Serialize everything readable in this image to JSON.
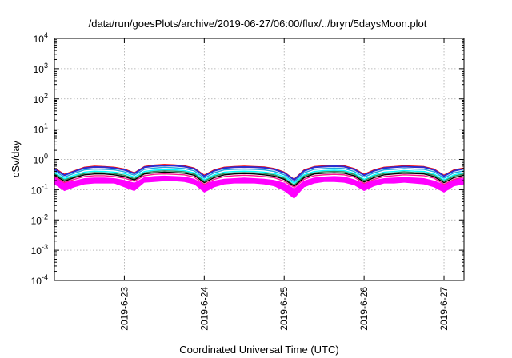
{
  "chart_data": {
    "type": "line",
    "title": "/data/run/goesPlots/archive/2019-06-27/06:00/flux/../bryn/5daysMoon.plot",
    "xlabel": "Coordinated Universal Time (UTC)",
    "ylabel": "cSv/day",
    "y_scale": "log",
    "ylim": [
      0.0001,
      10000
    ],
    "xlim": [
      "2019-06-22T03:00",
      "2019-06-27T06:00"
    ],
    "x_ticks": [
      "2019-6-23",
      "2019-6-24",
      "2019-6-25",
      "2019-6-26",
      "2019-6-27"
    ],
    "y_ticks": [
      {
        "base": "10",
        "exp": "-4"
      },
      {
        "base": "10",
        "exp": "-3"
      },
      {
        "base": "10",
        "exp": "-2"
      },
      {
        "base": "10",
        "exp": "-1"
      },
      {
        "base": "10",
        "exp": "0"
      },
      {
        "base": "10",
        "exp": "1"
      },
      {
        "base": "10",
        "exp": "2"
      },
      {
        "base": "10",
        "exp": "3"
      },
      {
        "base": "10",
        "exp": "4"
      }
    ],
    "grid": true,
    "legend": "none",
    "x": [
      "2019-06-22T03:00",
      "2019-06-22T06:00",
      "2019-06-22T09:00",
      "2019-06-22T12:00",
      "2019-06-22T15:00",
      "2019-06-22T18:00",
      "2019-06-22T21:00",
      "2019-06-23T00:00",
      "2019-06-23T03:00",
      "2019-06-23T06:00",
      "2019-06-23T09:00",
      "2019-06-23T12:00",
      "2019-06-23T15:00",
      "2019-06-23T18:00",
      "2019-06-23T21:00",
      "2019-06-24T00:00",
      "2019-06-24T03:00",
      "2019-06-24T06:00",
      "2019-06-24T09:00",
      "2019-06-24T12:00",
      "2019-06-24T15:00",
      "2019-06-24T18:00",
      "2019-06-24T21:00",
      "2019-06-25T00:00",
      "2019-06-25T03:00",
      "2019-06-25T06:00",
      "2019-06-25T09:00",
      "2019-06-25T12:00",
      "2019-06-25T15:00",
      "2019-06-25T18:00",
      "2019-06-25T21:00",
      "2019-06-26T00:00",
      "2019-06-26T03:00",
      "2019-06-26T06:00",
      "2019-06-26T09:00",
      "2019-06-26T12:00",
      "2019-06-26T15:00",
      "2019-06-26T18:00",
      "2019-06-26T21:00",
      "2019-06-27T00:00",
      "2019-06-27T03:00",
      "2019-06-27T06:00"
    ],
    "band": {
      "color": "#ff00ff",
      "lower": [
        0.15,
        0.09,
        0.12,
        0.15,
        0.16,
        0.16,
        0.16,
        0.12,
        0.09,
        0.17,
        0.18,
        0.19,
        0.19,
        0.18,
        0.15,
        0.08,
        0.12,
        0.15,
        0.16,
        0.16,
        0.16,
        0.15,
        0.13,
        0.09,
        0.05,
        0.12,
        0.16,
        0.18,
        0.18,
        0.17,
        0.14,
        0.09,
        0.13,
        0.16,
        0.16,
        0.17,
        0.16,
        0.15,
        0.12,
        0.08,
        0.13,
        0.15
      ],
      "upper": [
        0.26,
        0.17,
        0.2,
        0.24,
        0.25,
        0.25,
        0.24,
        0.21,
        0.17,
        0.26,
        0.28,
        0.29,
        0.28,
        0.27,
        0.23,
        0.15,
        0.2,
        0.23,
        0.24,
        0.25,
        0.24,
        0.23,
        0.21,
        0.17,
        0.11,
        0.2,
        0.25,
        0.27,
        0.28,
        0.27,
        0.22,
        0.16,
        0.21,
        0.24,
        0.25,
        0.26,
        0.25,
        0.24,
        0.2,
        0.15,
        0.22,
        0.24
      ]
    },
    "series": [
      {
        "color": "#ff0000",
        "values": [
          0.52,
          0.32,
          0.42,
          0.55,
          0.6,
          0.58,
          0.55,
          0.48,
          0.36,
          0.58,
          0.65,
          0.68,
          0.66,
          0.62,
          0.52,
          0.3,
          0.45,
          0.55,
          0.58,
          0.6,
          0.58,
          0.56,
          0.5,
          0.38,
          0.22,
          0.45,
          0.58,
          0.62,
          0.64,
          0.62,
          0.5,
          0.32,
          0.45,
          0.55,
          0.58,
          0.62,
          0.6,
          0.58,
          0.48,
          0.3,
          0.45,
          0.52
        ]
      },
      {
        "color": "#2d2dcf",
        "values": [
          0.48,
          0.3,
          0.4,
          0.52,
          0.56,
          0.55,
          0.52,
          0.45,
          0.34,
          0.55,
          0.6,
          0.63,
          0.62,
          0.58,
          0.49,
          0.28,
          0.42,
          0.52,
          0.55,
          0.56,
          0.55,
          0.53,
          0.47,
          0.36,
          0.21,
          0.42,
          0.55,
          0.58,
          0.6,
          0.58,
          0.47,
          0.3,
          0.42,
          0.52,
          0.55,
          0.58,
          0.56,
          0.55,
          0.45,
          0.28,
          0.42,
          0.49
        ]
      },
      {
        "color": "#1fa7e0",
        "values": [
          0.42,
          0.26,
          0.35,
          0.45,
          0.48,
          0.47,
          0.45,
          0.39,
          0.3,
          0.47,
          0.52,
          0.55,
          0.53,
          0.5,
          0.42,
          0.24,
          0.36,
          0.45,
          0.47,
          0.48,
          0.47,
          0.45,
          0.4,
          0.31,
          0.18,
          0.36,
          0.47,
          0.5,
          0.52,
          0.5,
          0.4,
          0.26,
          0.36,
          0.45,
          0.47,
          0.5,
          0.48,
          0.47,
          0.39,
          0.24,
          0.36,
          0.42
        ]
      },
      {
        "color": "#00ffff",
        "values": [
          0.36,
          0.23,
          0.3,
          0.38,
          0.41,
          0.4,
          0.38,
          0.34,
          0.26,
          0.4,
          0.44,
          0.46,
          0.45,
          0.43,
          0.36,
          0.21,
          0.31,
          0.38,
          0.4,
          0.41,
          0.4,
          0.38,
          0.34,
          0.27,
          0.16,
          0.31,
          0.4,
          0.43,
          0.44,
          0.43,
          0.35,
          0.22,
          0.31,
          0.38,
          0.4,
          0.43,
          0.41,
          0.4,
          0.33,
          0.21,
          0.31,
          0.36
        ]
      },
      {
        "color": "#2e8b57",
        "values": [
          0.33,
          0.21,
          0.27,
          0.34,
          0.37,
          0.36,
          0.34,
          0.3,
          0.23,
          0.36,
          0.4,
          0.42,
          0.41,
          0.39,
          0.33,
          0.19,
          0.28,
          0.34,
          0.36,
          0.37,
          0.36,
          0.34,
          0.31,
          0.24,
          0.14,
          0.28,
          0.36,
          0.39,
          0.4,
          0.39,
          0.32,
          0.2,
          0.28,
          0.34,
          0.36,
          0.39,
          0.37,
          0.36,
          0.3,
          0.19,
          0.28,
          0.33
        ]
      },
      {
        "color": "#000000",
        "values": [
          0.3,
          0.19,
          0.25,
          0.31,
          0.33,
          0.33,
          0.31,
          0.27,
          0.21,
          0.33,
          0.36,
          0.38,
          0.37,
          0.35,
          0.3,
          0.17,
          0.25,
          0.31,
          0.33,
          0.34,
          0.33,
          0.31,
          0.28,
          0.22,
          0.13,
          0.25,
          0.33,
          0.35,
          0.36,
          0.35,
          0.29,
          0.18,
          0.25,
          0.31,
          0.33,
          0.35,
          0.34,
          0.33,
          0.27,
          0.17,
          0.25,
          0.3
        ]
      },
      {
        "color": "#ff1493",
        "values": [
          0.27,
          0.17,
          0.22,
          0.27,
          0.29,
          0.29,
          0.27,
          0.24,
          0.19,
          0.29,
          0.32,
          0.33,
          0.32,
          0.31,
          0.26,
          0.15,
          0.22,
          0.27,
          0.29,
          0.3,
          0.29,
          0.27,
          0.25,
          0.19,
          0.12,
          0.22,
          0.29,
          0.31,
          0.32,
          0.31,
          0.26,
          0.16,
          0.22,
          0.27,
          0.29,
          0.31,
          0.3,
          0.29,
          0.24,
          0.15,
          0.22,
          0.26
        ]
      }
    ]
  }
}
